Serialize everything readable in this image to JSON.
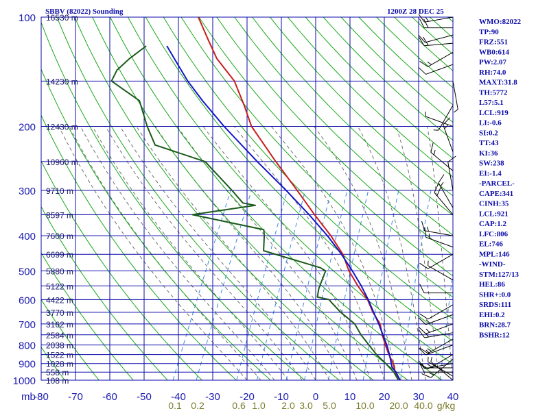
{
  "chart_data": {
    "type": "line",
    "title": "SBBV (82022) Sounding",
    "valid_time": "1200Z 28 DEC 25",
    "xlabel": "",
    "ylabel": "mb",
    "pressure_ticks": [
      100,
      200,
      300,
      400,
      500,
      600,
      700,
      800,
      900,
      1000
    ],
    "temperature_ticks": [
      -80,
      -70,
      -60,
      -50,
      -40,
      -30,
      -20,
      -10,
      0,
      10,
      20,
      30,
      40
    ],
    "mixing_ratio_labels": [
      "0.1",
      "0.2",
      "0.6",
      "1.0",
      "2.0",
      "3.0",
      "5.0",
      "10.0",
      "20.0",
      "40.0",
      "g/kg"
    ],
    "mixing_ratio_values": [
      0.1,
      0.2,
      0.6,
      1.0,
      2.0,
      3.0,
      5.0,
      10.0,
      20.0,
      40.0
    ],
    "height_labels": [
      {
        "p": 100,
        "text": "16530 m"
      },
      {
        "p": 150,
        "text": "14230 m"
      },
      {
        "p": 200,
        "text": "12430 m"
      },
      {
        "p": 250,
        "text": "10960 m"
      },
      {
        "p": 300,
        "text": "9710 m"
      },
      {
        "p": 350,
        "text": "8597 m"
      },
      {
        "p": 400,
        "text": "7600 m"
      },
      {
        "p": 450,
        "text": "6699 m"
      },
      {
        "p": 500,
        "text": "5880 m"
      },
      {
        "p": 550,
        "text": "5122 m"
      },
      {
        "p": 600,
        "text": "4422 m"
      },
      {
        "p": 650,
        "text": "3770 m"
      },
      {
        "p": 700,
        "text": "3162 m"
      },
      {
        "p": 750,
        "text": "2584 m"
      },
      {
        "p": 800,
        "text": "2038 m"
      },
      {
        "p": 850,
        "text": "1522 m"
      },
      {
        "p": 900,
        "text": "1028 m"
      },
      {
        "p": 950,
        "text": "558 m"
      },
      {
        "p": 1000,
        "text": "108 m"
      }
    ],
    "series": [
      {
        "name": "temperature",
        "color": "#c81e1e",
        "points": [
          [
            1003,
            26.0
          ],
          [
            1000,
            24.6
          ],
          [
            950,
            22.0
          ],
          [
            900,
            20.2
          ],
          [
            850,
            17.6
          ],
          [
            800,
            15.2
          ],
          [
            750,
            12.8
          ],
          [
            700,
            10.6
          ],
          [
            650,
            6.8
          ],
          [
            600,
            3.4
          ],
          [
            550,
            -1.4
          ],
          [
            500,
            -6.2
          ],
          [
            450,
            -10.4
          ],
          [
            400,
            -16.6
          ],
          [
            350,
            -24.4
          ],
          [
            300,
            -33.0
          ],
          [
            250,
            -43.4
          ],
          [
            200,
            -55.6
          ],
          [
            175,
            -60.8
          ],
          [
            150,
            -67.2
          ],
          [
            130,
            -75.6
          ],
          [
            115,
            -81.0
          ],
          [
            100,
            -87.0
          ]
        ]
      },
      {
        "name": "dewpoint",
        "color": "#1a5a1a",
        "points": [
          [
            1003,
            24.0
          ],
          [
            1000,
            24.1
          ],
          [
            950,
            21.6
          ],
          [
            900,
            18.0
          ],
          [
            850,
            14.0
          ],
          [
            800,
            10.4
          ],
          [
            750,
            6.6
          ],
          [
            700,
            3.2
          ],
          [
            650,
            -2.6
          ],
          [
            610,
            -6.8
          ],
          [
            600,
            -7.8
          ],
          [
            590,
            -11.6
          ],
          [
            560,
            -12.4
          ],
          [
            540,
            -12.6
          ],
          [
            500,
            -13.0
          ],
          [
            490,
            -15.0
          ],
          [
            440,
            -34.0
          ],
          [
            400,
            -36.0
          ],
          [
            385,
            -37.0
          ],
          [
            350,
            -60.0
          ],
          [
            330,
            -43.0
          ],
          [
            325,
            -47.0
          ],
          [
            300,
            -52.0
          ],
          [
            250,
            -64.0
          ],
          [
            225,
            -81.0
          ],
          [
            200,
            -86.0
          ],
          [
            170,
            -92.0
          ],
          [
            150,
            -103.0
          ],
          [
            140,
            -103.0
          ],
          [
            130,
            -101.0
          ],
          [
            120,
            -98.0
          ]
        ]
      },
      {
        "name": "parcel",
        "color": "#1414c8",
        "points": [
          [
            1003,
            24.8
          ],
          [
            1000,
            24.6
          ],
          [
            950,
            22.2
          ],
          [
            921,
            20.4
          ],
          [
            900,
            19.6
          ],
          [
            850,
            17.8
          ],
          [
            800,
            15.6
          ],
          [
            750,
            13.0
          ],
          [
            700,
            10.2
          ],
          [
            650,
            7.0
          ],
          [
            600,
            3.6
          ],
          [
            550,
            -0.4
          ],
          [
            500,
            -5.2
          ],
          [
            450,
            -10.8
          ],
          [
            400,
            -17.6
          ],
          [
            350,
            -26.0
          ],
          [
            300,
            -36.2
          ],
          [
            250,
            -48.8
          ],
          [
            200,
            -63.6
          ],
          [
            170,
            -73.6
          ],
          [
            150,
            -80.8
          ],
          [
            130,
            -88.0
          ],
          [
            120,
            -92.0
          ]
        ]
      }
    ],
    "wind_barbs": [
      {
        "p": 100,
        "dir": 80,
        "spd": 15
      },
      {
        "p": 107,
        "dir": 90,
        "spd": 20
      },
      {
        "p": 112,
        "dir": 75,
        "spd": 10
      },
      {
        "p": 118,
        "dir": 85,
        "spd": 20
      },
      {
        "p": 125,
        "dir": 60,
        "spd": 15
      },
      {
        "p": 135,
        "dir": 70,
        "spd": 10
      },
      {
        "p": 150,
        "dir": 350,
        "spd": 5
      },
      {
        "p": 175,
        "dir": 30,
        "spd": 5
      },
      {
        "p": 200,
        "dir": 110,
        "spd": 5
      },
      {
        "p": 235,
        "dir": 160,
        "spd": 15
      },
      {
        "p": 265,
        "dir": 130,
        "spd": 15
      },
      {
        "p": 300,
        "dir": 170,
        "spd": 10
      },
      {
        "p": 335,
        "dir": 150,
        "spd": 15
      },
      {
        "p": 350,
        "dir": 140,
        "spd": 20
      },
      {
        "p": 400,
        "dir": 100,
        "spd": 15
      },
      {
        "p": 430,
        "dir": 110,
        "spd": 15
      },
      {
        "p": 450,
        "dir": 60,
        "spd": 10
      },
      {
        "p": 530,
        "dir": 120,
        "spd": 5
      },
      {
        "p": 575,
        "dir": 90,
        "spd": 10
      },
      {
        "p": 620,
        "dir": 60,
        "spd": 10
      },
      {
        "p": 660,
        "dir": 70,
        "spd": 15
      },
      {
        "p": 700,
        "dir": 70,
        "spd": 15
      },
      {
        "p": 740,
        "dir": 80,
        "spd": 15
      },
      {
        "p": 770,
        "dir": 60,
        "spd": 15
      },
      {
        "p": 800,
        "dir": 70,
        "spd": 15
      },
      {
        "p": 850,
        "dir": 60,
        "spd": 15
      },
      {
        "p": 875,
        "dir": 50,
        "spd": 15
      },
      {
        "p": 900,
        "dir": 80,
        "spd": 10
      },
      {
        "p": 925,
        "dir": 90,
        "spd": 5
      },
      {
        "p": 950,
        "dir": 90,
        "spd": 10
      },
      {
        "p": 975,
        "dir": 120,
        "spd": 5
      },
      {
        "p": 1000,
        "dir": 130,
        "spd": 5
      }
    ],
    "indices": [
      "WMO:82022",
      "TP:90",
      "FRZ:551",
      "WB0:614",
      "PW:2.07",
      "RH:74.0",
      "MAXT:31.8",
      "TH:5772",
      "L57:5.1",
      "LCL:919",
      "LI:-0.6",
      "SI:0.2",
      "TT:43",
      "KI:36",
      "SW:238",
      "EI:-1.4",
      "-PARCEL-",
      "CAPE:341",
      "CINH:35",
      "LCL:921",
      "CAP:1.2",
      "LFC:806",
      "EL:746",
      "MPL:146",
      "-WIND-",
      "STM:127/13",
      "HEL:86",
      "SHR+:0.0",
      "SRDS:111",
      "EHI:0.2",
      "BRN:28.7",
      "BSHR:12"
    ],
    "colors": {
      "axes": "#0a0aa8",
      "isotherm": "#0a0aa8",
      "dry_adiabat": "#18a818",
      "moist_adiabat": "#707070",
      "mixing_ratio": "#3a8ae0",
      "wind_barb": "#000000"
    }
  }
}
